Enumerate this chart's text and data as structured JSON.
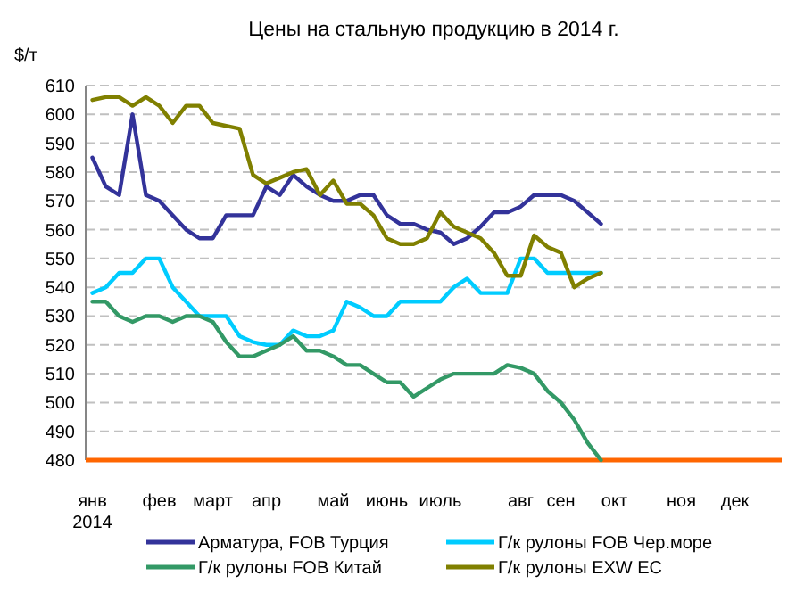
{
  "chart_data": {
    "type": "line",
    "title": "Цены на стальную продукцию в 2014 г.",
    "ylabel": "$/т",
    "categories": [
      "янв\n2014",
      null,
      null,
      null,
      null,
      "фев",
      null,
      null,
      null,
      "март",
      null,
      null,
      null,
      "апр",
      null,
      null,
      null,
      null,
      "май",
      null,
      null,
      null,
      "июнь",
      null,
      null,
      null,
      "июль",
      null,
      null,
      null,
      null,
      null,
      "авг",
      null,
      null,
      "сен",
      null,
      null,
      null,
      "окт",
      null,
      null,
      null,
      null,
      "ноя",
      null,
      null,
      null,
      "дек",
      null,
      null,
      null
    ],
    "series": [
      {
        "name": "Арматура, FOB Турция",
        "color": "#33339a",
        "values": [
          585,
          575,
          572,
          600,
          572,
          570,
          565,
          560,
          557,
          557,
          565,
          565,
          565,
          575,
          572,
          579,
          575,
          572,
          570,
          570,
          572,
          572,
          565,
          562,
          562,
          560,
          559,
          555,
          557,
          561,
          566,
          566,
          568,
          572,
          572,
          572,
          570,
          566,
          562,
          null,
          null,
          null,
          null,
          null,
          null,
          null,
          null,
          null,
          null,
          null,
          null,
          null
        ]
      },
      {
        "name": "Г/к рулоны FOB Чер.море",
        "color": "#00ccff",
        "values": [
          538,
          540,
          545,
          545,
          550,
          550,
          540,
          535,
          530,
          530,
          530,
          523,
          521,
          520,
          520,
          525,
          523,
          523,
          525,
          535,
          533,
          530,
          530,
          535,
          535,
          535,
          535,
          540,
          543,
          538,
          538,
          538,
          550,
          550,
          545,
          545,
          545,
          545,
          545,
          null,
          null,
          null,
          null,
          null,
          null,
          null,
          null,
          null,
          null,
          null,
          null,
          null
        ]
      },
      {
        "name": "Г/к рулоны FOB Китай",
        "color": "#339966",
        "values": [
          535,
          535,
          530,
          528,
          530,
          530,
          528,
          530,
          530,
          528,
          521,
          516,
          516,
          518,
          520,
          523,
          518,
          518,
          516,
          513,
          513,
          510,
          507,
          507,
          502,
          505,
          508,
          510,
          510,
          510,
          510,
          513,
          512,
          510,
          504,
          500,
          494,
          486,
          480,
          null,
          null,
          null,
          null,
          null,
          null,
          null,
          null,
          null,
          null,
          null,
          null,
          null
        ]
      },
      {
        "name": "Г/к рулоны EXW ЕС",
        "color": "#808000",
        "values": [
          605,
          606,
          606,
          603,
          606,
          603,
          597,
          603,
          603,
          597,
          596,
          595,
          579,
          576,
          578,
          580,
          581,
          572,
          577,
          569,
          569,
          565,
          557,
          555,
          555,
          557,
          566,
          561,
          559,
          557,
          552,
          544,
          544,
          558,
          554,
          552,
          540,
          543,
          545,
          null,
          null,
          null,
          null,
          null,
          null,
          null,
          null,
          null,
          null,
          null,
          null,
          null
        ]
      }
    ],
    "ylim": [
      480,
      610
    ],
    "yticks": [
      480,
      490,
      500,
      510,
      520,
      530,
      540,
      550,
      560,
      570,
      580,
      590,
      600,
      610
    ],
    "grid": "y",
    "legend": "bottom"
  }
}
